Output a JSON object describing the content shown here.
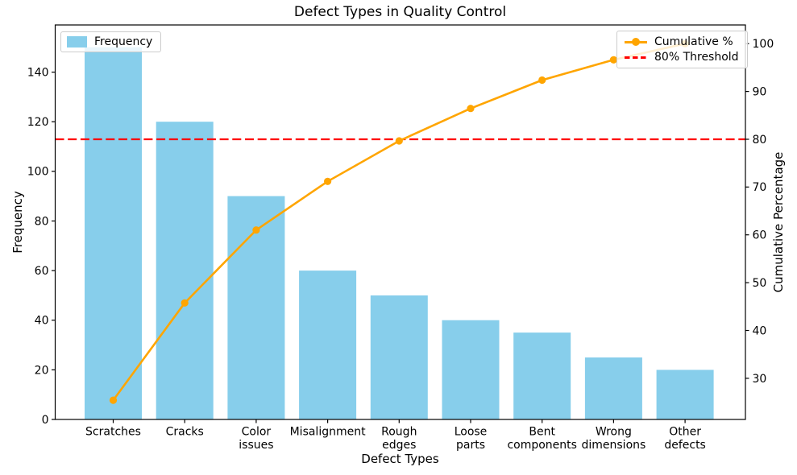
{
  "chart_data": {
    "type": "bar",
    "variant": "pareto",
    "title": "Defect Types in Quality Control",
    "xlabel": "Defect Types",
    "categories": [
      "Scratches",
      "Cracks",
      "Color issues",
      "Misalignment",
      "Rough edges",
      "Loose parts",
      "Bent components",
      "Wrong dimensions",
      "Other defects"
    ],
    "categories_wrapped": [
      [
        "Scratches"
      ],
      [
        "Cracks"
      ],
      [
        "Color",
        "issues"
      ],
      [
        "Misalignment"
      ],
      [
        "Rough",
        "edges"
      ],
      [
        "Loose",
        "parts"
      ],
      [
        "Bent",
        "components"
      ],
      [
        "Wrong",
        "dimensions"
      ],
      [
        "Other",
        "defects"
      ]
    ],
    "series": [
      {
        "name": "Frequency",
        "type": "bar",
        "axis": "left",
        "color": "#87CEEB",
        "values": [
          150,
          120,
          90,
          60,
          50,
          40,
          35,
          25,
          20
        ]
      },
      {
        "name": "Cumulative %",
        "type": "line",
        "axis": "right",
        "color": "#FFA500",
        "values": [
          25.42,
          45.76,
          61.02,
          71.19,
          79.66,
          86.44,
          92.37,
          96.61,
          100.0
        ]
      },
      {
        "name": "80% Threshold",
        "type": "hline",
        "axis": "right",
        "color": "#FF0000",
        "value": 80,
        "linestyle": "dashed"
      }
    ],
    "left_axis": {
      "label": "Frequency",
      "ticks": [
        0,
        20,
        40,
        60,
        80,
        100,
        120,
        140
      ],
      "range": [
        0,
        159
      ]
    },
    "right_axis": {
      "label": "Cumulative Percentage",
      "ticks": [
        30,
        40,
        50,
        60,
        70,
        80,
        90,
        100
      ],
      "range": [
        21.4,
        103.9
      ]
    },
    "grid": false,
    "legend_positions": [
      "upper left",
      "upper right"
    ],
    "colors": {
      "bar": "#87CEEB",
      "cumulative_line": "#FFA500",
      "threshold_line": "#FF0000",
      "text": "#000000",
      "spine": "#000000",
      "legend_border": "#cccccc"
    }
  }
}
